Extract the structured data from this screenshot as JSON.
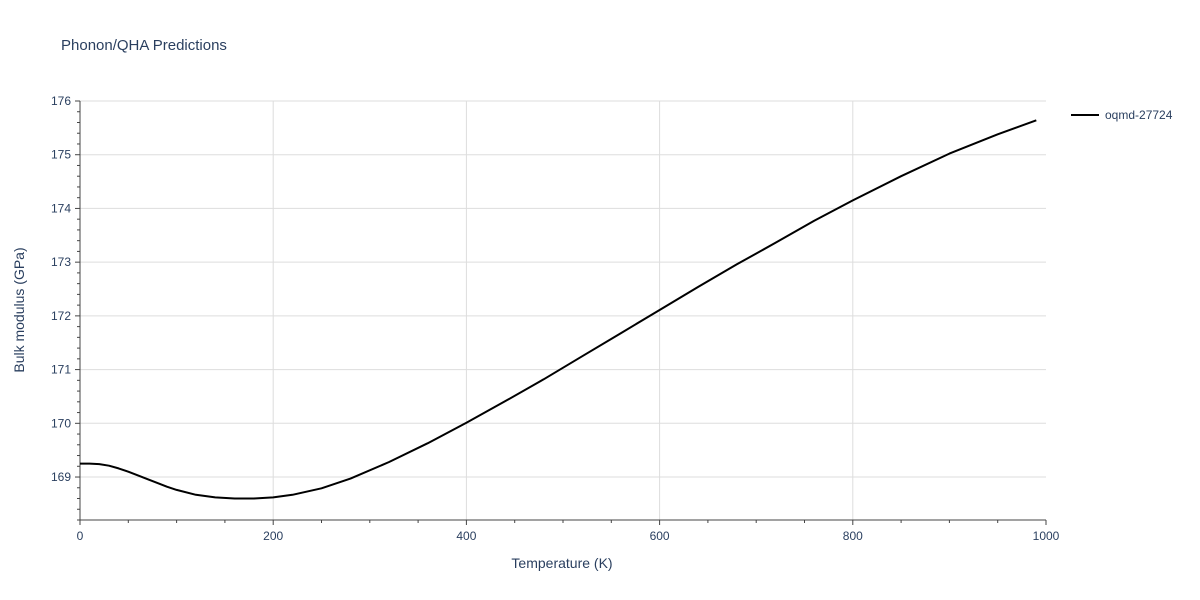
{
  "chart_data": {
    "type": "line",
    "title": "Phonon/QHA Predictions",
    "xlabel": "Temperature (K)",
    "ylabel": "Bulk modulus (GPa)",
    "xlim": [
      0,
      1000
    ],
    "ylim": [
      168.2,
      176
    ],
    "x_ticks": [
      0,
      200,
      400,
      600,
      800,
      1000
    ],
    "y_ticks": [
      169,
      170,
      171,
      172,
      173,
      174,
      175,
      176
    ],
    "grid": true,
    "legend_position": "top-right",
    "series": [
      {
        "name": "oqmd-27724",
        "color": "#000000",
        "x": [
          0,
          10,
          20,
          30,
          40,
          50,
          60,
          70,
          80,
          90,
          100,
          120,
          140,
          160,
          180,
          200,
          220,
          250,
          280,
          320,
          360,
          400,
          440,
          480,
          520,
          560,
          600,
          640,
          680,
          720,
          760,
          800,
          850,
          900,
          950,
          990
        ],
        "y": [
          169.25,
          169.25,
          169.24,
          169.21,
          169.16,
          169.1,
          169.03,
          168.96,
          168.89,
          168.82,
          168.76,
          168.67,
          168.62,
          168.6,
          168.6,
          168.62,
          168.67,
          168.79,
          168.97,
          169.28,
          169.63,
          170.01,
          170.41,
          170.82,
          171.25,
          171.68,
          172.11,
          172.54,
          172.96,
          173.36,
          173.77,
          174.15,
          174.6,
          175.02,
          175.38,
          175.64
        ]
      }
    ]
  }
}
